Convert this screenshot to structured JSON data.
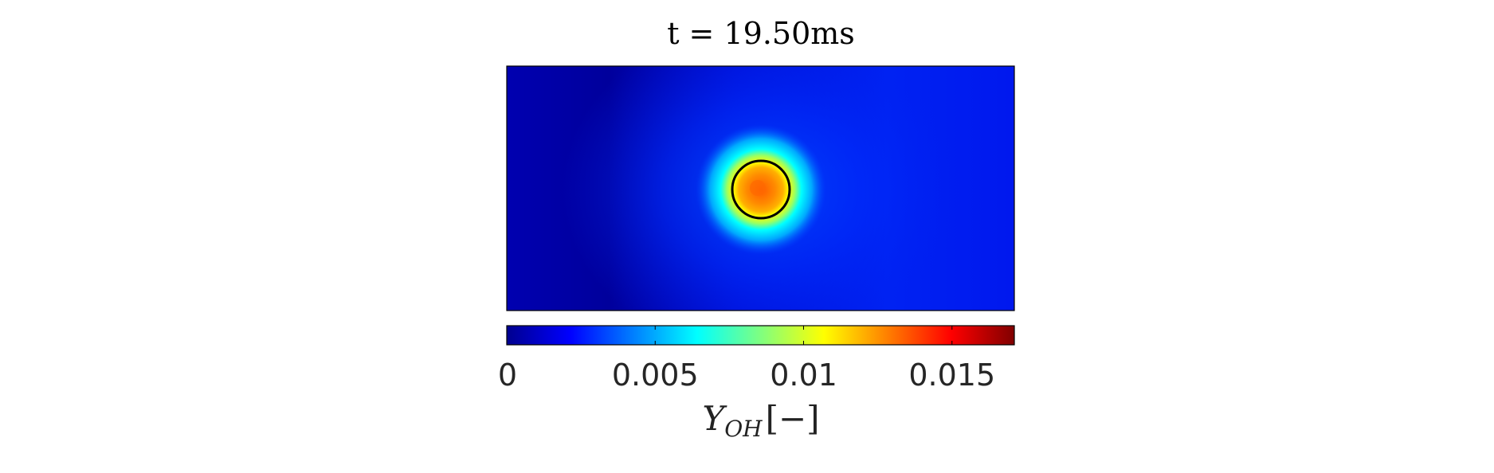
{
  "chart_data": {
    "type": "heatmap",
    "title": "t = 19.50ms",
    "colorbar": {
      "label_main": "Y",
      "label_sub": "OH",
      "label_unit": "[−]",
      "range": [
        0,
        0.0171
      ],
      "ticks": [
        0,
        0.005,
        0.01,
        0.015
      ],
      "tick_labels": [
        "0",
        "0.005",
        "0.01",
        "0.015"
      ],
      "colormap": "jet"
    },
    "field": {
      "description_background_level": 0.0045,
      "spot": {
        "center_frac": [
          0.505,
          0.505
        ],
        "peak_value": 0.0155,
        "contour": "black circle"
      }
    },
    "colors": {
      "jet_stops": [
        "#00008f",
        "#0000ff",
        "#00ffff",
        "#ffff00",
        "#ff0000",
        "#800000"
      ],
      "contour": "#000000",
      "frame": "#000000"
    }
  }
}
